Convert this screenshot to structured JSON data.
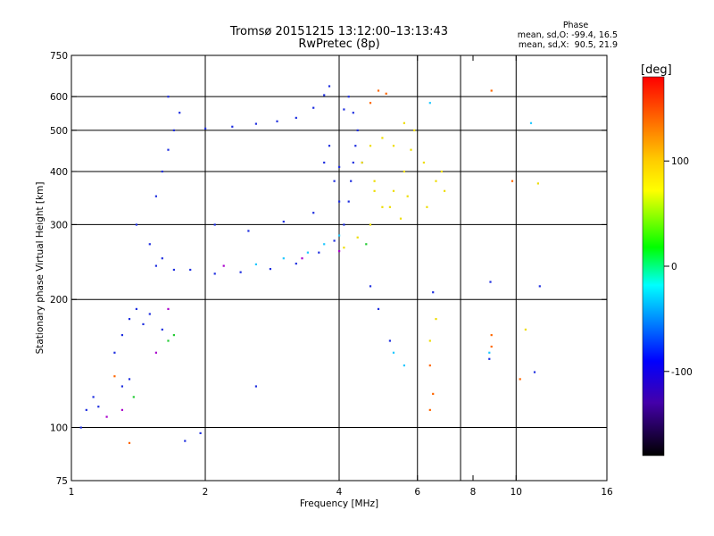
{
  "chart_data": {
    "type": "scatter",
    "title": "Tromsø 20151215 13:12:00–13:13:43",
    "subtitle": "RwPretec (8p)",
    "xlabel": "Frequency [MHz]",
    "ylabel": "Stationary phase Virtual Height [km]",
    "x_scale": "log",
    "y_scale": "log",
    "xlim": [
      1,
      16
    ],
    "ylim": [
      75,
      750
    ],
    "x_ticks": [
      1,
      2,
      4,
      6,
      8,
      10,
      16
    ],
    "y_ticks": [
      75,
      100,
      200,
      300,
      400,
      500,
      600,
      750
    ],
    "x_gridlines": [
      2,
      4,
      6,
      7.5,
      10
    ],
    "y_gridlines": [
      100,
      200,
      300,
      400,
      500,
      600
    ],
    "grid": true,
    "phase_stats": {
      "heading": "Phase",
      "line_o": "mean, sd,O: -99.4, 16.5",
      "line_x": "mean, sd,X:  90.5, 21.9"
    },
    "colorbar": {
      "label": "[deg]",
      "range": [
        -180,
        180
      ],
      "ticks": [
        100,
        0,
        -100
      ],
      "colors": [
        "#ff0000",
        "#ffff00",
        "#00ff00",
        "#00ffff",
        "#0000ff",
        "#000000"
      ]
    },
    "series": [
      {
        "color": "#1f2fe0",
        "values": [
          [
            1.05,
            100
          ],
          [
            1.08,
            110
          ],
          [
            1.12,
            118
          ],
          [
            1.15,
            112
          ],
          [
            1.25,
            150
          ],
          [
            1.3,
            165
          ],
          [
            1.35,
            180
          ],
          [
            1.4,
            190
          ],
          [
            1.45,
            175
          ],
          [
            1.5,
            185
          ],
          [
            1.6,
            170
          ],
          [
            1.3,
            125
          ],
          [
            1.35,
            130
          ],
          [
            1.4,
            300
          ],
          [
            1.55,
            350
          ],
          [
            1.6,
            400
          ],
          [
            1.65,
            450
          ],
          [
            1.7,
            500
          ],
          [
            1.75,
            550
          ],
          [
            1.65,
            600
          ],
          [
            1.5,
            270
          ],
          [
            1.55,
            240
          ],
          [
            1.6,
            250
          ],
          [
            1.7,
            235
          ],
          [
            1.85,
            235
          ],
          [
            2.1,
            230
          ],
          [
            2.4,
            232
          ],
          [
            2.8,
            236
          ],
          [
            3.2,
            243
          ],
          [
            3.6,
            258
          ],
          [
            3.9,
            275
          ],
          [
            4.1,
            300
          ],
          [
            4.2,
            340
          ],
          [
            4.25,
            380
          ],
          [
            4.3,
            420
          ],
          [
            4.35,
            460
          ],
          [
            4.4,
            500
          ],
          [
            4.3,
            550
          ],
          [
            4.2,
            600
          ],
          [
            2.0,
            505
          ],
          [
            2.3,
            510
          ],
          [
            2.6,
            518
          ],
          [
            2.9,
            525
          ],
          [
            3.2,
            535
          ],
          [
            3.5,
            565
          ],
          [
            3.7,
            605
          ],
          [
            3.8,
            635
          ],
          [
            2.1,
            300
          ],
          [
            2.5,
            290
          ],
          [
            3.0,
            305
          ],
          [
            3.5,
            320
          ],
          [
            4.0,
            340
          ],
          [
            3.7,
            420
          ],
          [
            3.8,
            460
          ],
          [
            3.9,
            380
          ],
          [
            4.0,
            410
          ],
          [
            4.1,
            560
          ],
          [
            4.5,
            420
          ],
          [
            4.7,
            215
          ],
          [
            4.9,
            190
          ],
          [
            5.2,
            160
          ],
          [
            6.5,
            208
          ],
          [
            8.75,
            220
          ],
          [
            11.3,
            215
          ],
          [
            8.7,
            145
          ],
          [
            11.0,
            135
          ],
          [
            2.6,
            125
          ],
          [
            1.8,
            93
          ],
          [
            1.95,
            97
          ]
        ]
      },
      {
        "color": "#1ec8ff",
        "values": [
          [
            3.0,
            250
          ],
          [
            3.4,
            258
          ],
          [
            3.7,
            270
          ],
          [
            4.0,
            283
          ],
          [
            2.6,
            242
          ],
          [
            5.3,
            150
          ],
          [
            5.6,
            140
          ],
          [
            8.7,
            150
          ],
          [
            6.4,
            580
          ],
          [
            10.8,
            520
          ]
        ]
      },
      {
        "color": "#eedd00",
        "values": [
          [
            4.1,
            265
          ],
          [
            4.4,
            280
          ],
          [
            4.7,
            300
          ],
          [
            5.0,
            330
          ],
          [
            5.3,
            360
          ],
          [
            5.6,
            400
          ],
          [
            5.8,
            450
          ],
          [
            5.9,
            500
          ],
          [
            4.5,
            420
          ],
          [
            4.8,
            380
          ],
          [
            5.2,
            330
          ],
          [
            5.5,
            310
          ],
          [
            5.7,
            350
          ],
          [
            5.3,
            460
          ],
          [
            5.0,
            480
          ],
          [
            4.8,
            360
          ],
          [
            6.3,
            330
          ],
          [
            6.6,
            380
          ],
          [
            6.8,
            400
          ],
          [
            6.2,
            420
          ],
          [
            6.9,
            360
          ],
          [
            6.6,
            180
          ],
          [
            6.4,
            160
          ],
          [
            4.7,
            460
          ],
          [
            5.6,
            520
          ],
          [
            10.5,
            170
          ],
          [
            11.2,
            375
          ]
        ]
      },
      {
        "color": "#22cc33",
        "values": [
          [
            1.65,
            160
          ],
          [
            1.7,
            165
          ],
          [
            1.38,
            118
          ],
          [
            4.6,
            270
          ]
        ]
      },
      {
        "color": "#ff6600",
        "values": [
          [
            4.7,
            580
          ],
          [
            4.9,
            620
          ],
          [
            5.1,
            610
          ],
          [
            6.4,
            140
          ],
          [
            6.4,
            110
          ],
          [
            6.5,
            120
          ],
          [
            8.8,
            165
          ],
          [
            8.8,
            155
          ],
          [
            8.8,
            620
          ],
          [
            9.8,
            380
          ],
          [
            10.2,
            130
          ],
          [
            1.25,
            132
          ],
          [
            1.35,
            92
          ]
        ]
      },
      {
        "color": "#aa00cc",
        "values": [
          [
            1.55,
            150
          ],
          [
            1.65,
            190
          ],
          [
            2.2,
            240
          ],
          [
            3.3,
            250
          ],
          [
            4.0,
            260
          ],
          [
            1.2,
            106
          ],
          [
            1.3,
            110
          ]
        ]
      }
    ]
  }
}
